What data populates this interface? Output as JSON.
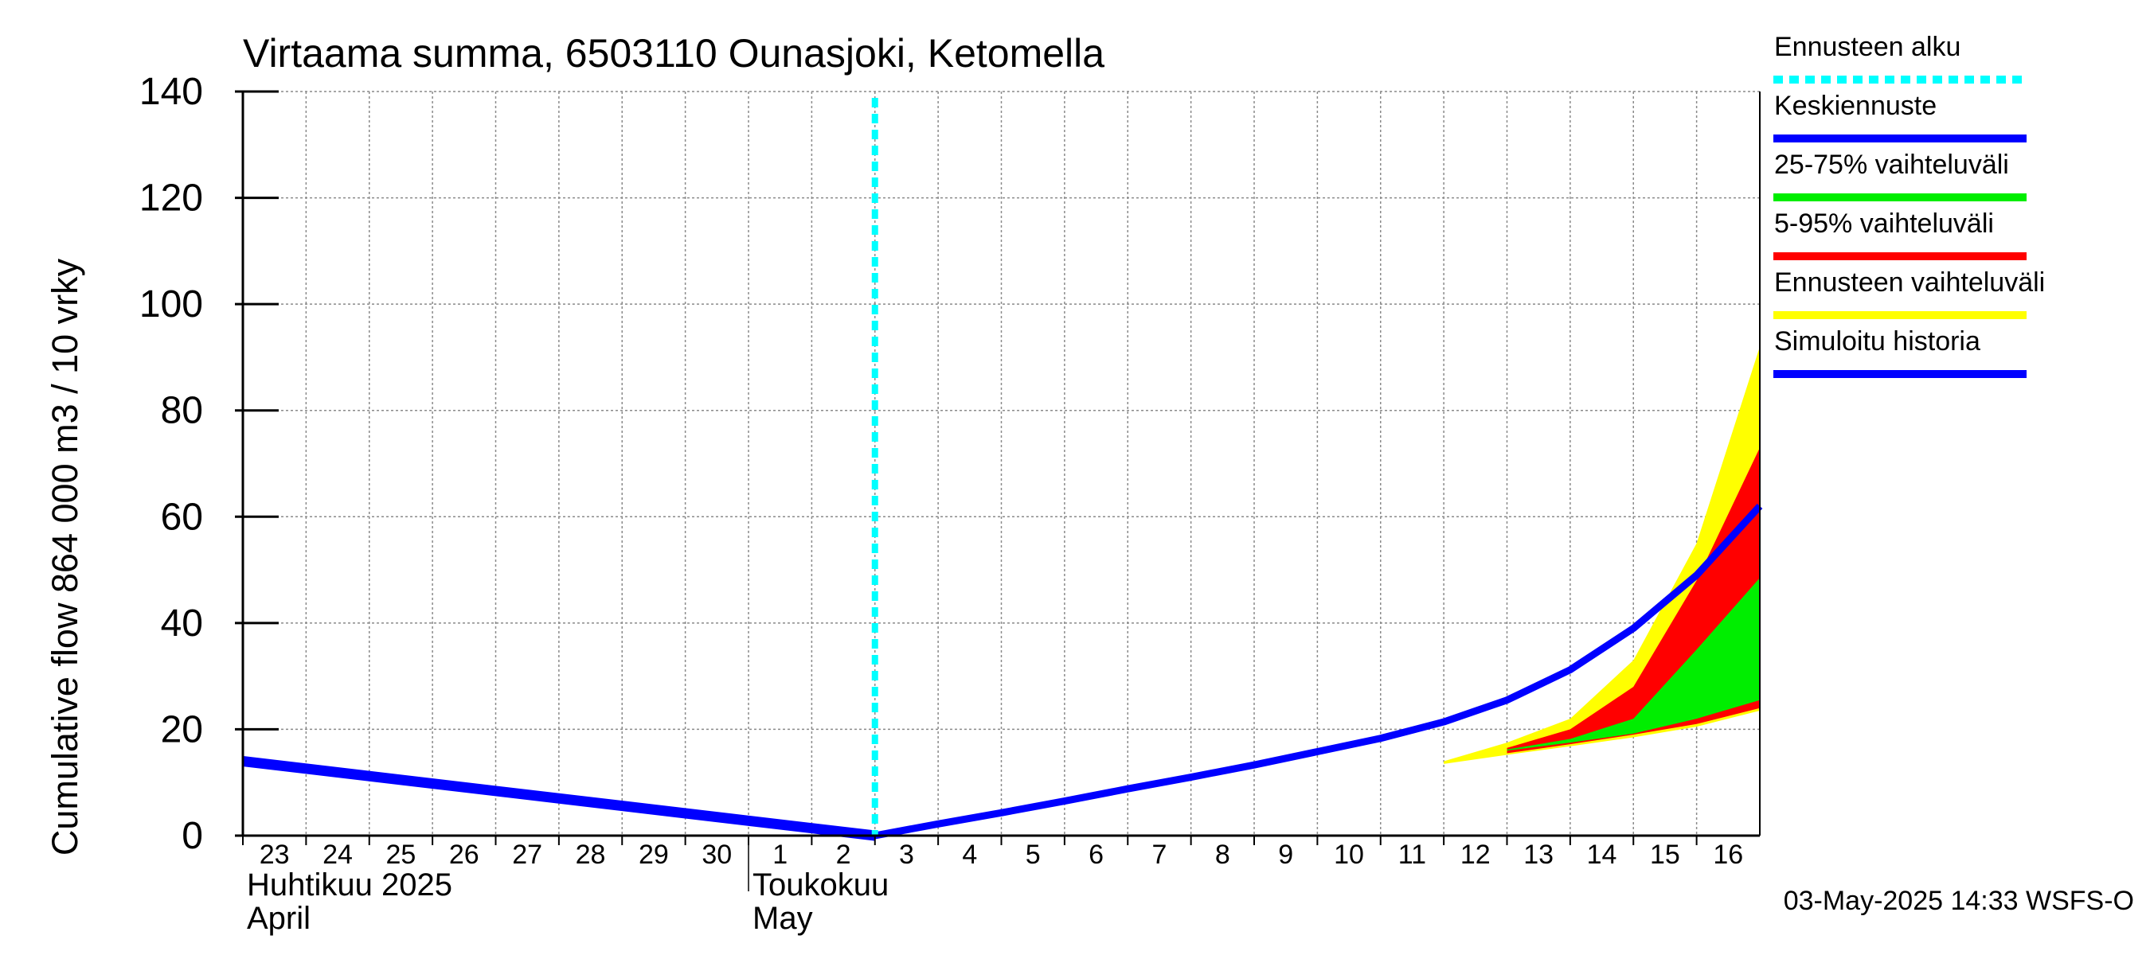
{
  "chart_data": {
    "type": "area",
    "title": "Virtaama summa, 6503110 Ounasjoki, Ketomella",
    "ylabel": "Cumulative flow    864 000 m3 / 10 vrky",
    "ylim": [
      0,
      140
    ],
    "yticks": [
      0,
      20,
      40,
      60,
      80,
      100,
      120,
      140
    ],
    "grid": true,
    "legend_position": "right",
    "x_range": [
      "2025-04-23",
      "2025-05-17"
    ],
    "day_labels": [
      "23",
      "24",
      "25",
      "26",
      "27",
      "28",
      "29",
      "30",
      "1",
      "2",
      "3",
      "4",
      "5",
      "6",
      "7",
      "8",
      "9",
      "10",
      "11",
      "12",
      "13",
      "14",
      "15",
      "16"
    ],
    "month_labels": [
      {
        "fi": "Huhtikuu  2025",
        "en": "April"
      },
      {
        "fi": "Toukokuu",
        "en": "May"
      }
    ],
    "forecast_start": "2025-05-03",
    "legend": [
      {
        "label": "Ennusteen alku",
        "color": "#00ffff",
        "dashed": true
      },
      {
        "label": "Keskiennuste",
        "color": "#0000ff",
        "dashed": false
      },
      {
        "label": "25-75% vaihteluväli",
        "color": "#00ee00",
        "dashed": false
      },
      {
        "label": "5-95% vaihteluväli",
        "color": "#ff0000",
        "dashed": false
      },
      {
        "label": "Ennusteen vaihteluväli",
        "color": "#ffff00",
        "dashed": false
      },
      {
        "label": "Simuloitu historia",
        "color": "#0000ff",
        "dashed": false
      }
    ],
    "series": [
      {
        "name": "Simuloitu historia",
        "x": [
          "2025-04-23",
          "2025-05-03"
        ],
        "y": [
          14.0,
          0.0
        ]
      },
      {
        "name": "Keskiennuste",
        "x": [
          "2025-05-03",
          "2025-05-04",
          "2025-05-05",
          "2025-05-06",
          "2025-05-07",
          "2025-05-08",
          "2025-05-09",
          "2025-05-10",
          "2025-05-11",
          "2025-05-12",
          "2025-05-13",
          "2025-05-14",
          "2025-05-15",
          "2025-05-16",
          "2025-05-17"
        ],
        "y": [
          0.0,
          2.2,
          4.3,
          6.5,
          8.8,
          11.0,
          13.3,
          15.8,
          18.3,
          21.4,
          25.5,
          31.2,
          39.0,
          49.0,
          62.0
        ]
      },
      {
        "name": "25-75% vaihteluväli",
        "x": [
          "2025-05-13",
          "2025-05-14",
          "2025-05-15",
          "2025-05-16",
          "2025-05-17"
        ],
        "low": [
          16.0,
          17.5,
          19.2,
          22.0,
          25.5
        ],
        "high": [
          16.2,
          18.2,
          22.0,
          35.0,
          48.5
        ]
      },
      {
        "name": "5-95% vaihteluväli",
        "x": [
          "2025-05-13",
          "2025-05-14",
          "2025-05-15",
          "2025-05-16",
          "2025-05-17"
        ],
        "low": [
          15.5,
          17.2,
          19.0,
          21.0,
          24.0
        ],
        "high": [
          16.5,
          20.0,
          28.0,
          48.0,
          73.0
        ]
      },
      {
        "name": "Ennusteen vaihteluväli",
        "x": [
          "2025-05-12",
          "2025-05-13",
          "2025-05-14",
          "2025-05-15",
          "2025-05-16",
          "2025-05-17"
        ],
        "low": [
          13.5,
          15.2,
          16.8,
          18.5,
          20.5,
          23.5
        ],
        "high": [
          14.0,
          17.5,
          22.0,
          33.0,
          55.0,
          92.0
        ]
      }
    ]
  },
  "footer": {
    "timestamp": "03-May-2025 14:33 WSFS-O"
  }
}
